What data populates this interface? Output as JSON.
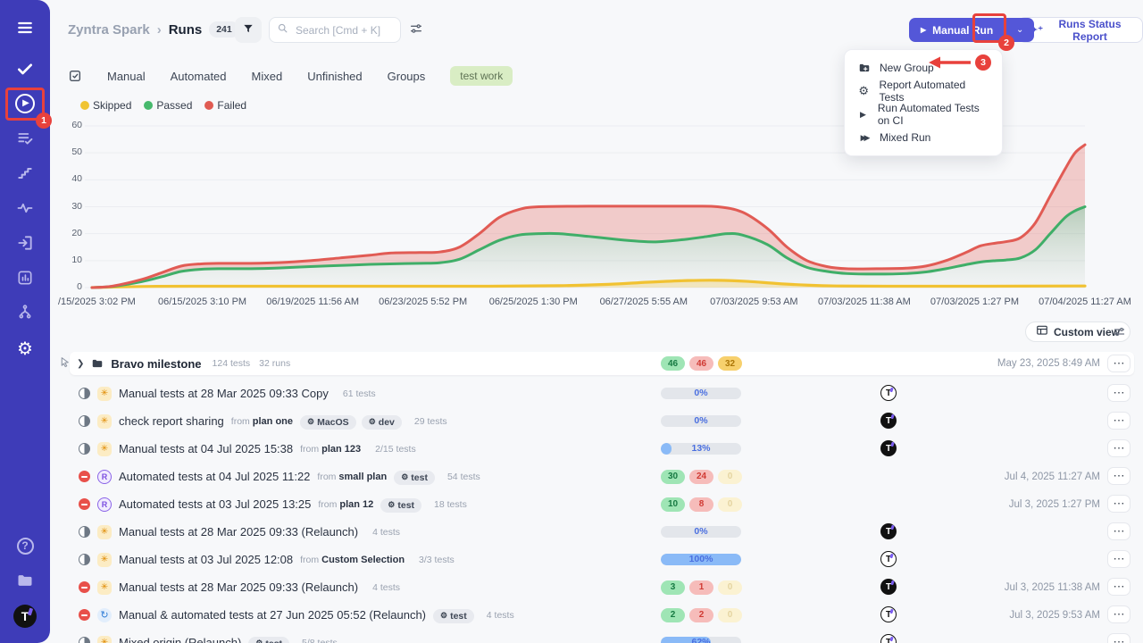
{
  "header": {
    "project": "Zyntra Spark",
    "breadcrumb_separator": "›",
    "page": "Runs",
    "count": "241",
    "search_placeholder": "Search [Cmd + K]",
    "manual_run": "Manual Run",
    "runs_status_report": "Runs Status Report"
  },
  "menu": {
    "items": [
      {
        "icon": "new-group-icon",
        "label": "New Group"
      },
      {
        "icon": "gear-icon",
        "label": "Report Automated Tests"
      },
      {
        "icon": "play-icon",
        "label": "Run Automated Tests on CI"
      },
      {
        "icon": "fast-forward-icon",
        "label": "Mixed Run"
      }
    ]
  },
  "tabs": [
    "Manual",
    "Automated",
    "Mixed",
    "Unfinished",
    "Groups"
  ],
  "tag_filter": "test work",
  "legend": [
    {
      "label": "Skipped",
      "color": "#f0c433"
    },
    {
      "label": "Passed",
      "color": "#47b96d"
    },
    {
      "label": "Failed",
      "color": "#e05b52"
    }
  ],
  "chart_data": {
    "type": "area",
    "title": "",
    "xlabel": "",
    "ylabel": "",
    "ylim": [
      0,
      60
    ],
    "yticks": [
      0,
      10,
      20,
      30,
      40,
      50,
      60
    ],
    "grid": true,
    "legend_position": "top-left",
    "x_labels": [
      "/15/2025 3:02 PM",
      "06/15/2025 3:10 PM",
      "06/19/2025 11:56 AM",
      "06/23/2025 5:52 PM",
      "06/25/2025 1:30 PM",
      "06/27/2025 5:55 AM",
      "07/03/2025 9:53 AM",
      "07/03/2025 11:38 AM",
      "07/03/2025 1:27 PM",
      "07/04/2025 11:27 AM"
    ],
    "series": [
      {
        "name": "Skipped",
        "color": "#f1c232",
        "fill": "rgba(241,194,50,0.28)",
        "points": [
          [
            0,
            0
          ],
          [
            0.05,
            0.4
          ],
          [
            0.1,
            0.5
          ],
          [
            0.2,
            0.5
          ],
          [
            0.3,
            0.5
          ],
          [
            0.4,
            0.5
          ],
          [
            0.47,
            0.7
          ],
          [
            0.52,
            1.2
          ],
          [
            0.56,
            2
          ],
          [
            0.6,
            2.6
          ],
          [
            0.63,
            2.7
          ],
          [
            0.66,
            2.3
          ],
          [
            0.69,
            1.5
          ],
          [
            0.72,
            0.9
          ],
          [
            0.75,
            0.6
          ],
          [
            0.8,
            0.5
          ],
          [
            0.9,
            0.5
          ],
          [
            1,
            0.6
          ]
        ]
      },
      {
        "name": "Passed",
        "color": "#3fae68",
        "fill": "green-gradient",
        "points": [
          [
            0,
            0
          ],
          [
            0.02,
            0.4
          ],
          [
            0.05,
            2.2
          ],
          [
            0.07,
            4
          ],
          [
            0.09,
            6
          ],
          [
            0.11,
            6.8
          ],
          [
            0.13,
            7
          ],
          [
            0.16,
            7
          ],
          [
            0.19,
            7.3
          ],
          [
            0.22,
            7.8
          ],
          [
            0.25,
            8.2
          ],
          [
            0.28,
            8.6
          ],
          [
            0.3,
            8.8
          ],
          [
            0.33,
            9
          ],
          [
            0.35,
            9.2
          ],
          [
            0.37,
            10.5
          ],
          [
            0.39,
            14
          ],
          [
            0.41,
            17.5
          ],
          [
            0.43,
            19.5
          ],
          [
            0.45,
            20
          ],
          [
            0.47,
            20
          ],
          [
            0.5,
            19
          ],
          [
            0.53,
            17.8
          ],
          [
            0.55,
            17.2
          ],
          [
            0.57,
            17
          ],
          [
            0.6,
            18
          ],
          [
            0.62,
            19
          ],
          [
            0.64,
            20
          ],
          [
            0.655,
            19.5
          ],
          [
            0.68,
            16
          ],
          [
            0.7,
            11
          ],
          [
            0.72,
            7.5
          ],
          [
            0.74,
            6
          ],
          [
            0.76,
            5.2
          ],
          [
            0.79,
            5
          ],
          [
            0.82,
            5.2
          ],
          [
            0.84,
            5.8
          ],
          [
            0.86,
            7
          ],
          [
            0.88,
            8.5
          ],
          [
            0.895,
            9.5
          ],
          [
            0.91,
            10
          ],
          [
            0.92,
            10.2
          ],
          [
            0.935,
            11
          ],
          [
            0.95,
            14
          ],
          [
            0.965,
            20
          ],
          [
            0.98,
            26
          ],
          [
            0.99,
            28.5
          ],
          [
            1,
            30
          ]
        ]
      },
      {
        "name": "Failed",
        "color": "#e15b54",
        "fill": "rgba(228,98,92,0.30)",
        "points": [
          [
            0,
            0
          ],
          [
            0.02,
            0.5
          ],
          [
            0.05,
            3
          ],
          [
            0.07,
            5.5
          ],
          [
            0.09,
            8
          ],
          [
            0.11,
            8.8
          ],
          [
            0.13,
            9
          ],
          [
            0.16,
            9
          ],
          [
            0.19,
            9.3
          ],
          [
            0.22,
            10
          ],
          [
            0.25,
            11
          ],
          [
            0.28,
            12
          ],
          [
            0.3,
            12.8
          ],
          [
            0.33,
            13
          ],
          [
            0.35,
            13.2
          ],
          [
            0.37,
            15
          ],
          [
            0.39,
            20
          ],
          [
            0.41,
            26
          ],
          [
            0.43,
            29
          ],
          [
            0.45,
            30
          ],
          [
            0.5,
            30.2
          ],
          [
            0.55,
            30.2
          ],
          [
            0.6,
            30.2
          ],
          [
            0.63,
            30
          ],
          [
            0.655,
            28
          ],
          [
            0.68,
            22
          ],
          [
            0.7,
            15
          ],
          [
            0.72,
            10
          ],
          [
            0.74,
            7.8
          ],
          [
            0.76,
            7
          ],
          [
            0.79,
            7
          ],
          [
            0.82,
            7.2
          ],
          [
            0.84,
            8
          ],
          [
            0.86,
            10
          ],
          [
            0.88,
            13
          ],
          [
            0.895,
            15.5
          ],
          [
            0.91,
            16.5
          ],
          [
            0.92,
            17
          ],
          [
            0.935,
            18.5
          ],
          [
            0.95,
            24
          ],
          [
            0.965,
            34
          ],
          [
            0.98,
            44
          ],
          [
            0.99,
            50
          ],
          [
            1,
            53
          ]
        ]
      }
    ]
  },
  "toolbar": {
    "custom_view": "Custom view"
  },
  "table": {
    "group": {
      "title": "Bravo milestone",
      "tests": "124 tests",
      "runs": "32 runs",
      "badges": {
        "passed": "46",
        "failed": "46",
        "skipped": "32"
      },
      "date": "May 23, 2025 8:49 AM"
    },
    "rows": [
      {
        "status": "progress",
        "origin": "manual",
        "title": "Manual tests at 28 Mar 2025 09:33 Copy",
        "from": null,
        "tags": [],
        "tests": "61 tests",
        "metric": {
          "type": "progress",
          "value": 0,
          "label": "0%"
        },
        "avatar": "outline",
        "date": null
      },
      {
        "status": "progress",
        "origin": "manual",
        "title": "check report sharing",
        "from": "plan one",
        "tags": [
          "MacOS",
          "dev"
        ],
        "tests": "29 tests",
        "metric": {
          "type": "progress",
          "value": 0,
          "label": "0%"
        },
        "avatar": "filled",
        "date": null
      },
      {
        "status": "progress",
        "origin": "manual",
        "title": "Manual tests at 04 Jul 2025 15:38",
        "from": "plan 123",
        "tags": [],
        "tests": "2/15 tests",
        "metric": {
          "type": "progress",
          "value": 13,
          "label": "13%"
        },
        "avatar": "filled",
        "date": null
      },
      {
        "status": "failed",
        "origin": "automated",
        "title": "Automated tests at 04 Jul 2025 11:22",
        "from": "small plan",
        "tags": [
          "test"
        ],
        "tests": "54 tests",
        "metric": {
          "type": "badges",
          "passed": "30",
          "failed": "24",
          "skipped": "0"
        },
        "avatar": null,
        "date": "Jul 4, 2025 11:27 AM"
      },
      {
        "status": "failed",
        "origin": "automated",
        "title": "Automated tests at 03 Jul 2025 13:25",
        "from": "plan 12",
        "tags": [
          "test"
        ],
        "tests": "18 tests",
        "metric": {
          "type": "badges",
          "passed": "10",
          "failed": "8",
          "skipped": "0"
        },
        "avatar": null,
        "date": "Jul 3, 2025 1:27 PM"
      },
      {
        "status": "progress",
        "origin": "manual",
        "title": "Manual tests at 28 Mar 2025 09:33 (Relaunch)",
        "from": null,
        "tags": [],
        "tests": "4 tests",
        "metric": {
          "type": "progress",
          "value": 0,
          "label": "0%"
        },
        "avatar": "filled",
        "date": null
      },
      {
        "status": "progress",
        "origin": "manual",
        "title": "Manual tests at 03 Jul 2025 12:08",
        "from": "Custom Selection",
        "tags": [],
        "tests": "3/3 tests",
        "metric": {
          "type": "progress",
          "value": 100,
          "label": "100%"
        },
        "avatar": "outline",
        "date": null
      },
      {
        "status": "failed",
        "origin": "manual",
        "title": "Manual tests at 28 Mar 2025 09:33 (Relaunch)",
        "from": null,
        "tags": [],
        "tests": "4 tests",
        "metric": {
          "type": "badges",
          "passed": "3",
          "failed": "1",
          "skipped": "0"
        },
        "avatar": "filled",
        "date": "Jul 3, 2025 11:38 AM"
      },
      {
        "status": "failed",
        "origin": "mixed",
        "title": "Manual & automated tests at 27 Jun 2025 05:52 (Relaunch)",
        "from": null,
        "tags": [
          "test"
        ],
        "tests": "4 tests",
        "metric": {
          "type": "badges",
          "passed": "2",
          "failed": "2",
          "skipped": "0"
        },
        "avatar": "outline",
        "date": "Jul 3, 2025 9:53 AM"
      },
      {
        "status": "progress",
        "origin": "manual",
        "title": "Mixed origin (Relaunch)",
        "from": null,
        "tags": [
          "test"
        ],
        "tests": "5/8 tests",
        "metric": {
          "type": "progress",
          "value": 62,
          "label": "62%"
        },
        "avatar": "outline",
        "date": null
      }
    ]
  },
  "sidebar": {
    "icon_names": [
      "menu-icon",
      "check-icon",
      "play-circle-icon",
      "checklist-icon",
      "steps-icon",
      "pulse-icon",
      "sign-in-icon",
      "bar-chart-icon",
      "branch-icon",
      "gear-icon",
      "help-icon",
      "folder-icon",
      "user-avatar"
    ]
  },
  "annotations": {
    "step1": "1",
    "step2": "2",
    "step3": "3"
  },
  "colors": {
    "accent": "#5457d8",
    "sidebar": "#3e3cb8",
    "annotation": "#e8413c",
    "tag_green_bg": "#d9edc4"
  }
}
